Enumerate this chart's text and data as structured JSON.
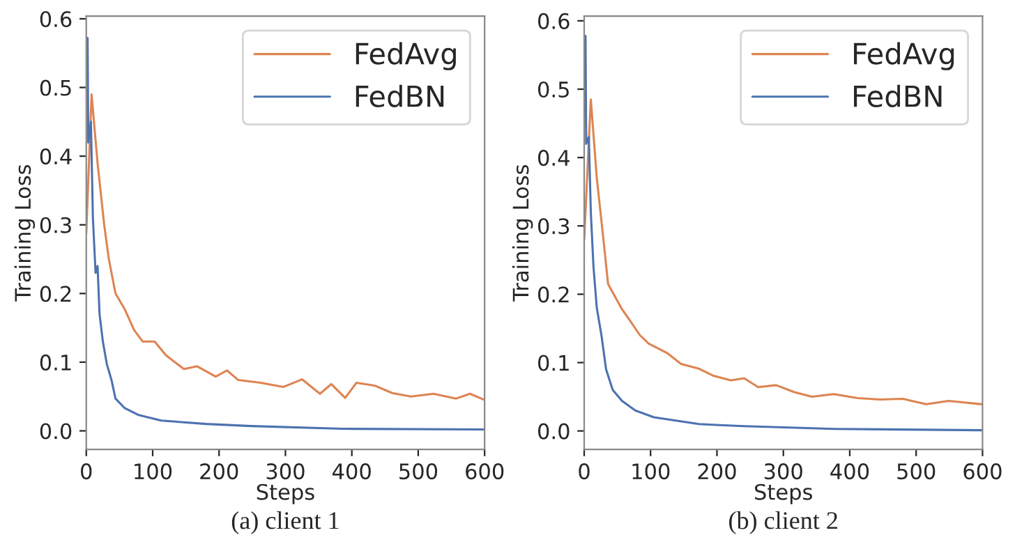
{
  "chart_data": [
    {
      "type": "line",
      "title": "(a) client 1",
      "xlabel": "Steps",
      "ylabel": "Training Loss",
      "xlim": [
        0,
        600
      ],
      "ylim": [
        -0.027,
        0.604
      ],
      "xticks": [
        0,
        100,
        200,
        300,
        400,
        500,
        600
      ],
      "yticks": [
        {
          "value": 0,
          "label": "0.0"
        },
        {
          "value": 0.1,
          "label": "0.1"
        },
        {
          "value": 0.2,
          "label": "0.2"
        },
        {
          "value": 0.3,
          "label": "0.3"
        },
        {
          "value": 0.4,
          "label": "0.4"
        },
        {
          "value": 0.5,
          "label": "0.5"
        },
        {
          "value": 0.6,
          "label": "0.6"
        }
      ],
      "grid": false,
      "legend": "top right",
      "marker": "none",
      "line_style": "solid",
      "series": [
        {
          "name": "FedAvg",
          "color": "#dd8452",
          "x": [
            0,
            8,
            17,
            27,
            34,
            44,
            58,
            72,
            85,
            103,
            120,
            147,
            167,
            195,
            212,
            229,
            263,
            297,
            325,
            352,
            369,
            390,
            407,
            434,
            461,
            489,
            523,
            557,
            578,
            600
          ],
          "values": [
            0.288,
            0.49,
            0.39,
            0.3,
            0.25,
            0.2,
            0.177,
            0.147,
            0.13,
            0.13,
            0.11,
            0.09,
            0.094,
            0.079,
            0.088,
            0.074,
            0.07,
            0.064,
            0.075,
            0.054,
            0.068,
            0.048,
            0.07,
            0.066,
            0.055,
            0.05,
            0.054,
            0.047,
            0.054,
            0.045
          ]
        },
        {
          "name": "FedBN",
          "color": "#4c72b0",
          "x": [
            0,
            2,
            3,
            7,
            10,
            14,
            17,
            20,
            25,
            31,
            38,
            44,
            58,
            79,
            113,
            181,
            249,
            386,
            600
          ],
          "values": [
            0.572,
            0.572,
            0.42,
            0.45,
            0.31,
            0.23,
            0.24,
            0.17,
            0.13,
            0.097,
            0.074,
            0.047,
            0.033,
            0.023,
            0.015,
            0.01,
            0.007,
            0.003,
            0.002
          ]
        }
      ]
    },
    {
      "type": "line",
      "title": "(b) client 2",
      "xlabel": "Steps",
      "ylabel": "Training Loss",
      "xlim": [
        0,
        600
      ],
      "ylim": [
        -0.027,
        0.607
      ],
      "xticks": [
        0,
        100,
        200,
        300,
        400,
        500,
        600
      ],
      "yticks": [
        {
          "value": 0,
          "label": "0.0"
        },
        {
          "value": 0.1,
          "label": "0.1"
        },
        {
          "value": 0.2,
          "label": "0.2"
        },
        {
          "value": 0.3,
          "label": "0.3"
        },
        {
          "value": 0.4,
          "label": "0.4"
        },
        {
          "value": 0.5,
          "label": "0.5"
        },
        {
          "value": 0.6,
          "label": "0.6"
        }
      ],
      "grid": false,
      "legend": "top right",
      "marker": "none",
      "line_style": "solid",
      "series": [
        {
          "name": "FedAvg",
          "color": "#dd8452",
          "x": [
            0,
            10,
            19,
            29,
            36,
            57,
            70,
            84,
            97,
            125,
            146,
            173,
            194,
            221,
            241,
            262,
            289,
            316,
            343,
            376,
            412,
            446,
            480,
            515,
            549,
            600
          ],
          "values": [
            0.28,
            0.485,
            0.37,
            0.28,
            0.215,
            0.178,
            0.16,
            0.14,
            0.128,
            0.114,
            0.098,
            0.091,
            0.081,
            0.074,
            0.077,
            0.064,
            0.067,
            0.057,
            0.05,
            0.054,
            0.048,
            0.046,
            0.047,
            0.039,
            0.044,
            0.039
          ]
        },
        {
          "name": "FedBN",
          "color": "#4c72b0",
          "x": [
            0,
            2,
            3,
            7,
            10,
            14,
            19,
            26,
            33,
            43,
            57,
            77,
            105,
            173,
            241,
            378,
            600
          ],
          "values": [
            0.578,
            0.578,
            0.42,
            0.43,
            0.32,
            0.24,
            0.18,
            0.14,
            0.09,
            0.06,
            0.044,
            0.03,
            0.02,
            0.01,
            0.007,
            0.003,
            0.001
          ]
        }
      ]
    }
  ]
}
